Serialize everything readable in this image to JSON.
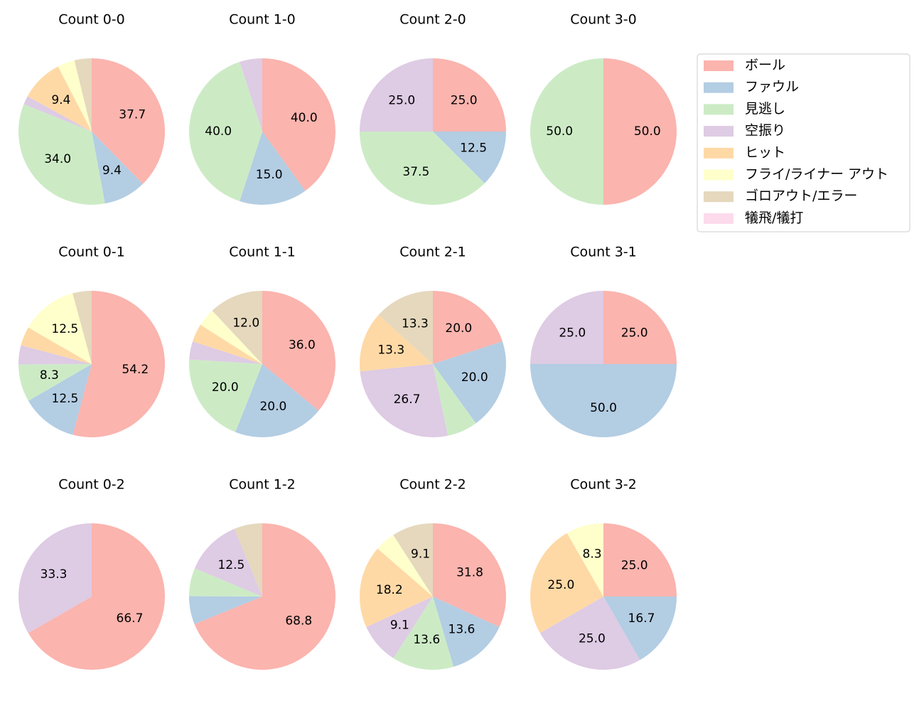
{
  "categories": [
    "ボール",
    "ファウル",
    "見逃し",
    "空振り",
    "ヒット",
    "フライ/ライナー アウト",
    "ゴロアウト/エラー",
    "犠飛/犠打"
  ],
  "colors": [
    "#fbb4ae",
    "#b3cde3",
    "#ccebc5",
    "#decbe4",
    "#fed9a6",
    "#ffffcc",
    "#e5d8bd",
    "#fddaec"
  ],
  "chart_data": [
    {
      "type": "pie",
      "title": "Count 0-0",
      "values": [
        37.7,
        9.4,
        34.0,
        1.9,
        9.4,
        3.8,
        3.8,
        0
      ],
      "labels": [
        "37.7",
        "9.4",
        "34.0",
        "",
        "9.4",
        "",
        "",
        ""
      ]
    },
    {
      "type": "pie",
      "title": "Count 1-0",
      "values": [
        40.0,
        15.0,
        40.0,
        5.0,
        0,
        0,
        0,
        0
      ],
      "labels": [
        "40.0",
        "15.0",
        "40.0",
        "",
        "",
        "",
        "",
        ""
      ]
    },
    {
      "type": "pie",
      "title": "Count 2-0",
      "values": [
        25.0,
        12.5,
        37.5,
        25.0,
        0,
        0,
        0,
        0
      ],
      "labels": [
        "25.0",
        "12.5",
        "37.5",
        "25.0",
        "",
        "",
        "",
        ""
      ]
    },
    {
      "type": "pie",
      "title": "Count 3-0",
      "values": [
        50.0,
        0,
        50.0,
        0,
        0,
        0,
        0,
        0
      ],
      "labels": [
        "50.0",
        "",
        "50.0",
        "",
        "",
        "",
        "",
        ""
      ]
    },
    {
      "type": "pie",
      "title": "Count 0-1",
      "values": [
        54.2,
        12.5,
        8.3,
        4.2,
        4.2,
        12.5,
        4.2,
        0
      ],
      "labels": [
        "54.2",
        "12.5",
        "8.3",
        "",
        "",
        "12.5",
        "",
        ""
      ]
    },
    {
      "type": "pie",
      "title": "Count 1-1",
      "values": [
        36.0,
        20.0,
        20.0,
        4.0,
        4.0,
        4.0,
        12.0,
        0
      ],
      "labels": [
        "36.0",
        "20.0",
        "20.0",
        "",
        "",
        "",
        "12.0",
        ""
      ]
    },
    {
      "type": "pie",
      "title": "Count 2-1",
      "values": [
        20.0,
        20.0,
        6.7,
        26.7,
        13.3,
        0,
        13.3,
        0
      ],
      "labels": [
        "20.0",
        "20.0",
        "",
        "26.7",
        "13.3",
        "",
        "13.3",
        ""
      ]
    },
    {
      "type": "pie",
      "title": "Count 3-1",
      "values": [
        25.0,
        50.0,
        0,
        25.0,
        0,
        0,
        0,
        0
      ],
      "labels": [
        "25.0",
        "50.0",
        "",
        "25.0",
        "",
        "",
        "",
        ""
      ]
    },
    {
      "type": "pie",
      "title": "Count 0-2",
      "values": [
        66.7,
        0,
        0,
        33.3,
        0,
        0,
        0,
        0
      ],
      "labels": [
        "66.7",
        "",
        "",
        "33.3",
        "",
        "",
        "",
        ""
      ]
    },
    {
      "type": "pie",
      "title": "Count 1-2",
      "values": [
        68.8,
        6.2,
        6.2,
        12.5,
        0,
        0,
        6.2,
        0
      ],
      "labels": [
        "68.8",
        "",
        "",
        "12.5",
        "",
        "",
        "",
        ""
      ]
    },
    {
      "type": "pie",
      "title": "Count 2-2",
      "values": [
        31.8,
        13.6,
        13.6,
        9.1,
        18.2,
        4.5,
        9.1,
        0
      ],
      "labels": [
        "31.8",
        "13.6",
        "13.6",
        "9.1",
        "18.2",
        "",
        "9.1",
        ""
      ]
    },
    {
      "type": "pie",
      "title": "Count 3-2",
      "values": [
        25.0,
        16.7,
        0,
        25.0,
        25.0,
        8.3,
        0,
        0
      ],
      "labels": [
        "25.0",
        "16.7",
        "",
        "25.0",
        "25.0",
        "8.3",
        "",
        ""
      ]
    }
  ]
}
